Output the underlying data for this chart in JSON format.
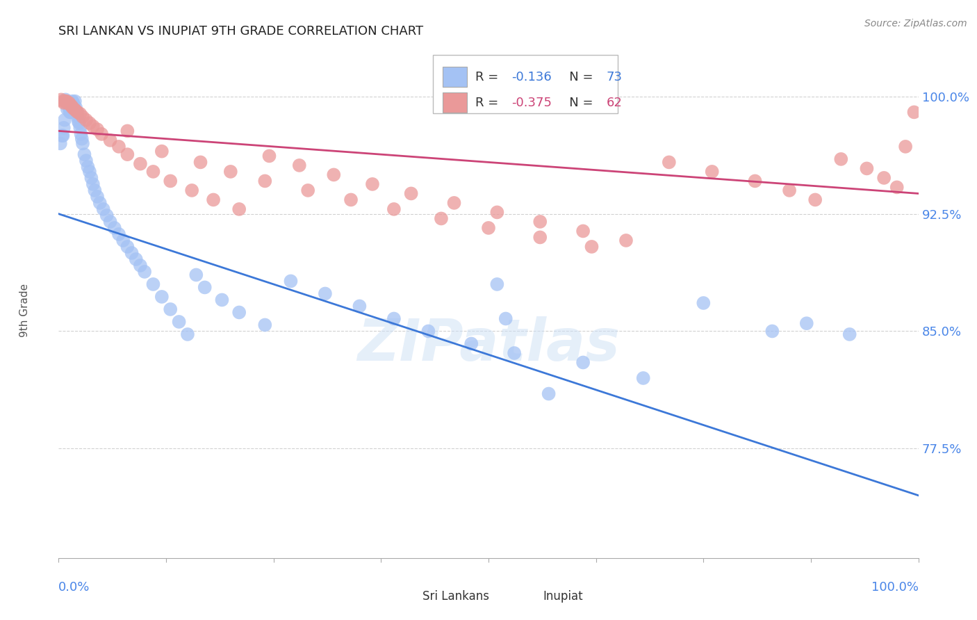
{
  "title": "SRI LANKAN VS INUPIAT 9TH GRADE CORRELATION CHART",
  "source": "Source: ZipAtlas.com",
  "ylabel": "9th Grade",
  "ytick_labels": [
    "77.5%",
    "85.0%",
    "92.5%",
    "100.0%"
  ],
  "ytick_values": [
    0.775,
    0.85,
    0.925,
    1.0
  ],
  "xlim": [
    0.0,
    1.0
  ],
  "ylim": [
    0.705,
    1.03
  ],
  "legend_r1_label": "R = ",
  "legend_r1_val": "-0.136",
  "legend_n1_label": "N = ",
  "legend_n1_val": "73",
  "legend_r2_label": "R = ",
  "legend_r2_val": "-0.375",
  "legend_n2_label": "N = ",
  "legend_n2_val": "62",
  "blue_color": "#a4c2f4",
  "pink_color": "#ea9999",
  "blue_line_color": "#3c78d8",
  "pink_line_color": "#cc4477",
  "axis_label_color": "#4a86e8",
  "watermark": "ZIPatlas",
  "sl_line_y0": 0.925,
  "sl_line_y1": 0.745,
  "in_line_y0": 0.978,
  "in_line_y1": 0.938,
  "sri_lankans_x": [
    0.002,
    0.004,
    0.005,
    0.006,
    0.007,
    0.008,
    0.009,
    0.01,
    0.011,
    0.012,
    0.013,
    0.013,
    0.014,
    0.015,
    0.016,
    0.017,
    0.018,
    0.019,
    0.02,
    0.021,
    0.022,
    0.023,
    0.024,
    0.025,
    0.026,
    0.027,
    0.028,
    0.03,
    0.032,
    0.034,
    0.036,
    0.038,
    0.04,
    0.042,
    0.045,
    0.048,
    0.052,
    0.056,
    0.06,
    0.065,
    0.07,
    0.075,
    0.08,
    0.085,
    0.09,
    0.095,
    0.1,
    0.11,
    0.12,
    0.13,
    0.14,
    0.15,
    0.16,
    0.17,
    0.19,
    0.21,
    0.24,
    0.27,
    0.31,
    0.35,
    0.39,
    0.43,
    0.48,
    0.51,
    0.52,
    0.53,
    0.57,
    0.61,
    0.68,
    0.75,
    0.83,
    0.87,
    0.92
  ],
  "sri_lankans_y": [
    0.97,
    0.975,
    0.975,
    0.98,
    0.985,
    0.998,
    0.997,
    0.992,
    0.996,
    0.993,
    0.996,
    0.99,
    0.99,
    0.996,
    0.997,
    0.996,
    0.993,
    0.997,
    0.993,
    0.99,
    0.987,
    0.984,
    0.983,
    0.98,
    0.976,
    0.973,
    0.97,
    0.963,
    0.959,
    0.955,
    0.952,
    0.948,
    0.944,
    0.94,
    0.936,
    0.932,
    0.928,
    0.924,
    0.92,
    0.916,
    0.912,
    0.908,
    0.904,
    0.9,
    0.896,
    0.892,
    0.888,
    0.88,
    0.872,
    0.864,
    0.856,
    0.848,
    0.886,
    0.878,
    0.87,
    0.862,
    0.854,
    0.882,
    0.874,
    0.866,
    0.858,
    0.85,
    0.842,
    0.88,
    0.858,
    0.836,
    0.81,
    0.83,
    0.82,
    0.868,
    0.85,
    0.855,
    0.848
  ],
  "inupiat_x": [
    0.003,
    0.005,
    0.006,
    0.008,
    0.009,
    0.01,
    0.012,
    0.013,
    0.015,
    0.016,
    0.018,
    0.02,
    0.022,
    0.025,
    0.028,
    0.032,
    0.036,
    0.04,
    0.045,
    0.05,
    0.06,
    0.07,
    0.08,
    0.095,
    0.11,
    0.13,
    0.155,
    0.18,
    0.21,
    0.245,
    0.28,
    0.32,
    0.365,
    0.41,
    0.46,
    0.51,
    0.56,
    0.61,
    0.66,
    0.71,
    0.76,
    0.81,
    0.85,
    0.88,
    0.91,
    0.94,
    0.96,
    0.975,
    0.985,
    0.995,
    0.08,
    0.12,
    0.165,
    0.2,
    0.24,
    0.29,
    0.34,
    0.39,
    0.445,
    0.5,
    0.56,
    0.62
  ],
  "inupiat_y": [
    0.998,
    0.997,
    0.996,
    0.997,
    0.997,
    0.996,
    0.996,
    0.995,
    0.994,
    0.993,
    0.992,
    0.991,
    0.99,
    0.989,
    0.987,
    0.985,
    0.983,
    0.981,
    0.979,
    0.976,
    0.972,
    0.968,
    0.963,
    0.957,
    0.952,
    0.946,
    0.94,
    0.934,
    0.928,
    0.962,
    0.956,
    0.95,
    0.944,
    0.938,
    0.932,
    0.926,
    0.92,
    0.914,
    0.908,
    0.958,
    0.952,
    0.946,
    0.94,
    0.934,
    0.96,
    0.954,
    0.948,
    0.942,
    0.968,
    0.99,
    0.978,
    0.965,
    0.958,
    0.952,
    0.946,
    0.94,
    0.934,
    0.928,
    0.922,
    0.916,
    0.91,
    0.904
  ]
}
